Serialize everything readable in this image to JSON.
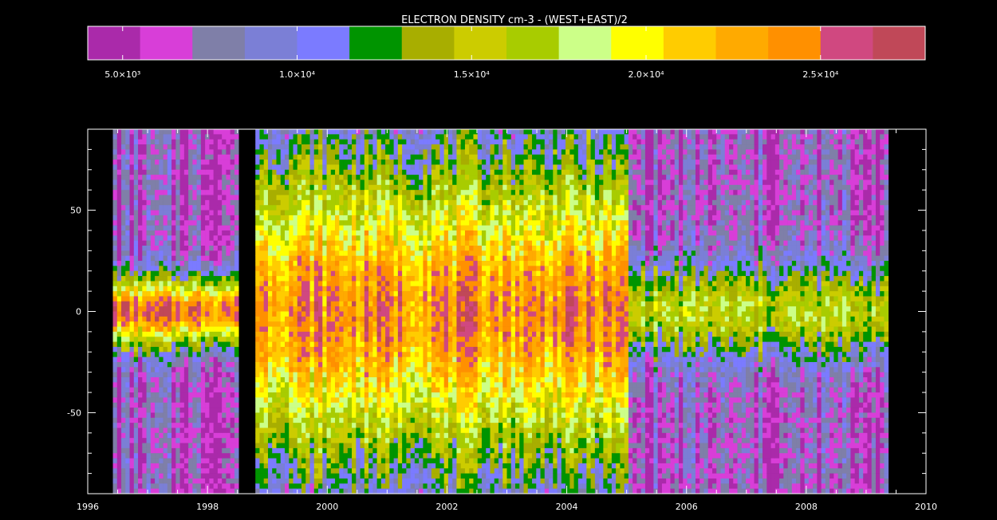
{
  "chart_data": {
    "type": "heatmap",
    "title": "ELECTRON DENSITY cm-3 - (WEST+EAST)/2",
    "xlabel": "",
    "ylabel": "",
    "xlim": [
      1996,
      2010
    ],
    "ylim": [
      -90,
      90
    ],
    "x_ticks": [
      1996,
      1998,
      2000,
      2002,
      2004,
      2006,
      2008,
      2010
    ],
    "x_tick_labels": [
      "1996",
      "1998",
      "2000",
      "2002",
      "2004",
      "2006",
      "2008",
      "2010"
    ],
    "y_ticks": [
      -50,
      0,
      50
    ],
    "y_tick_labels": [
      "-50",
      "0",
      "50"
    ],
    "colorbar": {
      "range": [
        4000,
        28000
      ],
      "ticks": [
        5000,
        10000,
        15000,
        20000,
        25000
      ],
      "tick_labels": [
        "5.0×10³",
        "1.0×10⁴",
        "1.5×10⁴",
        "2.0×10⁴",
        "2.5×10⁴"
      ],
      "colors": [
        "#aa2aaa",
        "#d83ed8",
        "#7f7fa8",
        "#7b7fd6",
        "#7b7bff",
        "#009400",
        "#a8ae00",
        "#cccc00",
        "#a8cc00",
        "#ccff88",
        "#ffff00",
        "#ffcc00",
        "#ffaa00",
        "#ff9000",
        "#d04880",
        "#c04858"
      ]
    },
    "data_gaps_years": [
      [
        1998.52,
        1998.81
      ],
      [
        1999.05,
        1999.08
      ],
      [
        2009.4,
        2010.0
      ]
    ],
    "density_bands": [
      {
        "start": 1996.4,
        "end": 1998.52,
        "center_lat": 0,
        "peak_density": 25000,
        "half_width_deg": 18
      },
      {
        "start": 1998.81,
        "end": 2005.0,
        "center_lat": 0,
        "peak_density": 24000,
        "half_width_deg": 80
      },
      {
        "start": 2005.0,
        "end": 2009.4,
        "center_lat": 0,
        "peak_density": 16000,
        "half_width_deg": 25
      }
    ]
  }
}
